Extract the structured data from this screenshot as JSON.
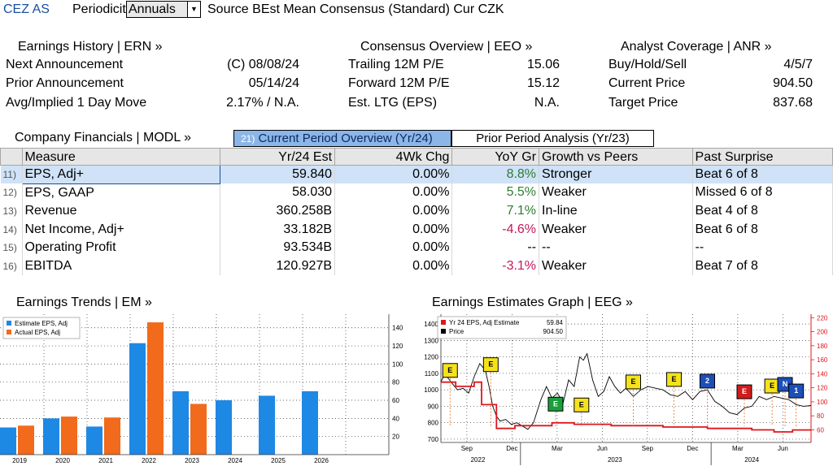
{
  "top_bar": {
    "ticker": "CEZ AS",
    "periodicity_label": "Periodicity",
    "periodicity_value": "Annuals",
    "source_text": "Source BEst Mean Consensus (Standard) Cur CZK"
  },
  "earnings_history": {
    "title": "Earnings History | ERN »",
    "rows": [
      {
        "label": "Next Announcement",
        "value": "(C)  08/08/24"
      },
      {
        "label": "Prior Announcement",
        "value": "05/14/24"
      },
      {
        "label": "Avg/Implied 1 Day Move",
        "value": "2.17% / N.A."
      }
    ]
  },
  "consensus_overview": {
    "title": "Consensus Overview | EEO »",
    "rows": [
      {
        "label": "Trailing 12M P/E",
        "value": "15.06"
      },
      {
        "label": "Forward 12M P/E",
        "value": "15.12"
      },
      {
        "label": "Est. LTG (EPS)",
        "value": "N.A."
      }
    ]
  },
  "analyst_coverage": {
    "title": "Analyst Coverage | ANR »",
    "rows": [
      {
        "label": "Buy/Hold/Sell",
        "value": "4/5/7"
      },
      {
        "label": "Current Price",
        "value": "904.50"
      },
      {
        "label": "Target Price",
        "value": "837.68"
      }
    ]
  },
  "company_financials": {
    "title": "Company Financials | MODL »",
    "tabs": [
      {
        "num": "21)",
        "label": "Current Period Overview (Yr/24)"
      },
      {
        "label": "Prior Period Analysis (Yr/23)"
      }
    ],
    "columns": [
      "Measure",
      "Yr/24 Est",
      "4Wk Chg",
      "YoY Gr",
      "Growth vs Peers",
      "Past Surprise"
    ],
    "rows": [
      {
        "idx": "11)",
        "measure": "EPS, Adj+",
        "est": "59.840",
        "chg": "0.00%",
        "yoy": "8.8%",
        "peers": "Stronger",
        "surprise": "Beat 6 of 8"
      },
      {
        "idx": "12)",
        "measure": "EPS, GAAP",
        "est": "58.030",
        "chg": "0.00%",
        "yoy": "5.5%",
        "peers": "Weaker",
        "surprise": "Missed 6 of 8"
      },
      {
        "idx": "13)",
        "measure": "Revenue",
        "est": "360.258B",
        "chg": "0.00%",
        "yoy": "7.1%",
        "peers": "In-line",
        "surprise": "Beat 4 of 8"
      },
      {
        "idx": "14)",
        "measure": "Net Income, Adj+",
        "est": "33.182B",
        "chg": "0.00%",
        "yoy": "-4.6%",
        "peers": "Weaker",
        "surprise": "Beat 6 of 8"
      },
      {
        "idx": "15)",
        "measure": "Operating Profit",
        "est": "93.534B",
        "chg": "0.00%",
        "yoy": "--",
        "peers": "--",
        "surprise": "--"
      },
      {
        "idx": "16)",
        "measure": "EBITDA",
        "est": "120.927B",
        "chg": "0.00%",
        "yoy": "-3.1%",
        "peers": "Weaker",
        "surprise": "Beat 7 of 8"
      }
    ]
  },
  "earnings_trends_title": "Earnings Trends | EM »",
  "earnings_estimates_title": "Earnings Estimates Graph | EEG »",
  "chart_data": [
    {
      "type": "bar",
      "categories": [
        "2019",
        "2020",
        "2021",
        "2022",
        "2023",
        "2024",
        "2025",
        "2026"
      ],
      "series": [
        {
          "name": "Estimate EPS, Adj",
          "values": [
            30,
            40,
            31,
            123,
            70,
            60,
            65,
            70
          ]
        },
        {
          "name": "Actual EPS, Adj",
          "values": [
            32,
            42,
            41,
            146,
            56,
            null,
            null,
            null
          ]
        }
      ],
      "ylim": [
        0,
        155
      ],
      "yticks": [
        20,
        40,
        60,
        80,
        100,
        120,
        140
      ],
      "legend": "top-left",
      "grid": true
    },
    {
      "type": "line",
      "series": [
        {
          "name": "Yr 24 EPS, Adj Estimate",
          "last": "59.84",
          "axis": "right"
        },
        {
          "name": "Price",
          "last": "904.50",
          "axis": "left"
        }
      ],
      "x_ticks": [
        "Sep",
        "Dec",
        "Mar",
        "Jun",
        "Sep",
        "Dec",
        "Mar",
        "Jun"
      ],
      "x_years": [
        "2022",
        "2023",
        "2024"
      ],
      "left_ylim": [
        680,
        1460
      ],
      "left_yticks": [
        700,
        800,
        900,
        1000,
        1100,
        1200,
        1300,
        1400
      ],
      "right_ylim": [
        42,
        225
      ],
      "right_yticks": [
        60,
        80,
        100,
        120,
        140,
        160,
        180,
        200,
        220
      ],
      "legend": "top-left",
      "price_points": [
        [
          0,
          1050
        ],
        [
          0.01,
          1090
        ],
        [
          0.02,
          1070
        ],
        [
          0.03,
          1040
        ],
        [
          0.045,
          1000
        ],
        [
          0.06,
          1010
        ],
        [
          0.075,
          980
        ],
        [
          0.09,
          1080
        ],
        [
          0.105,
          1160
        ],
        [
          0.12,
          1120
        ],
        [
          0.13,
          1020
        ],
        [
          0.14,
          900
        ],
        [
          0.15,
          840
        ],
        [
          0.16,
          810
        ],
        [
          0.175,
          820
        ],
        [
          0.19,
          790
        ],
        [
          0.205,
          800
        ],
        [
          0.22,
          780
        ],
        [
          0.235,
          760
        ],
        [
          0.25,
          800
        ],
        [
          0.27,
          940
        ],
        [
          0.285,
          1020
        ],
        [
          0.3,
          950
        ],
        [
          0.315,
          980
        ],
        [
          0.33,
          920
        ],
        [
          0.345,
          1060
        ],
        [
          0.36,
          1020
        ],
        [
          0.375,
          1200
        ],
        [
          0.385,
          1180
        ],
        [
          0.395,
          1220
        ],
        [
          0.41,
          1060
        ],
        [
          0.425,
          960
        ],
        [
          0.44,
          990
        ],
        [
          0.455,
          1080
        ],
        [
          0.47,
          1020
        ],
        [
          0.485,
          980
        ],
        [
          0.5,
          1010
        ],
        [
          0.52,
          960
        ],
        [
          0.54,
          1000
        ],
        [
          0.56,
          1020
        ],
        [
          0.58,
          1010
        ],
        [
          0.6,
          1000
        ],
        [
          0.62,
          970
        ],
        [
          0.64,
          960
        ],
        [
          0.66,
          990
        ],
        [
          0.68,
          940
        ],
        [
          0.7,
          990
        ],
        [
          0.72,
          1000
        ],
        [
          0.74,
          930
        ],
        [
          0.76,
          900
        ],
        [
          0.78,
          860
        ],
        [
          0.8,
          850
        ],
        [
          0.82,
          890
        ],
        [
          0.84,
          900
        ],
        [
          0.86,
          960
        ],
        [
          0.88,
          940
        ],
        [
          0.9,
          960
        ],
        [
          0.92,
          950
        ],
        [
          0.94,
          940
        ],
        [
          0.96,
          910
        ],
        [
          0.98,
          900
        ],
        [
          1,
          904.5
        ]
      ],
      "estimate_points": [
        [
          0,
          128
        ],
        [
          0.04,
          128
        ],
        [
          0.04,
          122
        ],
        [
          0.09,
          122
        ],
        [
          0.09,
          128
        ],
        [
          0.11,
          128
        ],
        [
          0.11,
          96
        ],
        [
          0.15,
          96
        ],
        [
          0.15,
          62
        ],
        [
          0.2,
          62
        ],
        [
          0.2,
          66
        ],
        [
          0.3,
          66
        ],
        [
          0.3,
          70
        ],
        [
          0.36,
          70
        ],
        [
          0.36,
          68
        ],
        [
          0.46,
          68
        ],
        [
          0.46,
          66
        ],
        [
          0.6,
          66
        ],
        [
          0.6,
          64
        ],
        [
          0.72,
          64
        ],
        [
          0.72,
          62
        ],
        [
          0.84,
          62
        ],
        [
          0.84,
          60
        ],
        [
          0.9,
          60
        ],
        [
          0.9,
          57
        ],
        [
          0.95,
          57
        ],
        [
          0.95,
          59.84
        ],
        [
          1,
          59.84
        ]
      ],
      "badges": [
        {
          "label": "E",
          "color": "yellow",
          "x": 0.005,
          "y": 1160
        },
        {
          "label": "E",
          "color": "yellow",
          "x": 0.115,
          "y": 1195
        },
        {
          "label": "E",
          "color": "green",
          "x": 0.29,
          "y": 955
        },
        {
          "label": "E",
          "color": "yellow",
          "x": 0.36,
          "y": 950
        },
        {
          "label": "E",
          "color": "yellow",
          "x": 0.5,
          "y": 1090
        },
        {
          "label": "E",
          "color": "yellow",
          "x": 0.61,
          "y": 1105
        },
        {
          "label": "2",
          "color": "blue",
          "x": 0.7,
          "y": 1095
        },
        {
          "label": "E",
          "color": "red",
          "x": 0.8,
          "y": 1030
        },
        {
          "label": "E",
          "color": "yellow",
          "x": 0.875,
          "y": 1065
        },
        {
          "label": "N",
          "color": "blue",
          "x": 0.91,
          "y": 1075
        },
        {
          "label": "1",
          "color": "blue",
          "x": 0.94,
          "y": 1035
        }
      ]
    }
  ]
}
